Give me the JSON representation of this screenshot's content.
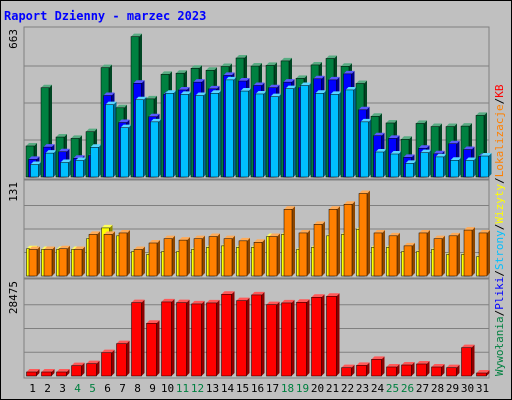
{
  "chart_data": {
    "type": "bar",
    "title": "Raport Dzienny -  marzec 2023",
    "categories": [
      "1",
      "2",
      "3",
      "4",
      "5",
      "6",
      "7",
      "8",
      "9",
      "10",
      "11",
      "12",
      "13",
      "14",
      "15",
      "16",
      "17",
      "18",
      "19",
      "20",
      "21",
      "22",
      "23",
      "24",
      "25",
      "26",
      "27",
      "28",
      "29",
      "30",
      "31"
    ],
    "weekend_days": [
      "4",
      "5",
      "11",
      "12",
      "18",
      "19",
      "25",
      "26"
    ],
    "right_legend": {
      "parts": [
        "Wywołania",
        "/",
        "Pliki",
        "/",
        "Strony",
        "/",
        "Wizyty",
        "/",
        "Lokalizacje",
        "/",
        "KB"
      ],
      "colors": [
        "#008040",
        "#000000",
        "#0000ff",
        "#000000",
        "#00c0ff",
        "#000000",
        "#ffff00",
        "#000000",
        "#ff8000",
        "#000000",
        "#ff0000"
      ]
    },
    "panels": [
      {
        "max_label": "663",
        "ymax": 663,
        "series": [
          {
            "name": "Wywołania",
            "color": "#008040",
            "values": [
              139,
              400,
              179,
              173,
              203,
              490,
              310,
              629,
              350,
              460,
              465,
              487,
              478,
              495,
              533,
              497,
              500,
              520,
              442,
              502,
              531,
              496,
              419,
              272,
              242,
              169,
              240,
              226,
              226,
              228,
              276
            ]
          },
          {
            "name": "Pliki",
            "color": "#0000ff",
            "values": [
              79,
              134,
              113,
              84,
              96,
              365,
              244,
              420,
              270,
              370,
              390,
              425,
              395,
              455,
              430,
              410,
              400,
              425,
              400,
              440,
              435,
              462,
              301,
              185,
              173,
              88,
              129,
              104,
              149,
              123,
              92
            ]
          },
          {
            "name": "Strony",
            "color": "#00c0ff",
            "values": [
              56,
              107,
              65,
              74,
              133,
              324,
              221,
              346,
              247,
              375,
              370,
              365,
              375,
              435,
              385,
              372,
              360,
              396,
              410,
              375,
              370,
              390,
              247,
              112,
              103,
              61,
              109,
              90,
              75,
              74,
              94
            ]
          }
        ]
      },
      {
        "max_label": "131",
        "ymax": 131,
        "series": [
          {
            "name": "Wizyty",
            "color": "#ffff00",
            "values": [
              38,
              37,
              37,
              37,
              52,
              67,
              56,
              34,
              30,
              34,
              34,
              37,
              40,
              42,
              40,
              40,
              55,
              58,
              37,
              40,
              56,
              58,
              65,
              40,
              40,
              34,
              34,
              37,
              30,
              30,
              27
            ]
          },
          {
            "name": "Lokalizacje",
            "color": "#ff8000",
            "values": [
              37,
              37,
              38,
              37,
              58,
              58,
              60,
              37,
              46,
              52,
              50,
              52,
              55,
              52,
              49,
              47,
              55,
              93,
              60,
              72,
              93,
              100,
              115,
              60,
              56,
              42,
              60,
              52,
              56,
              64,
              60
            ]
          }
        ]
      },
      {
        "max_label": "28475",
        "ymax": 28475,
        "series": [
          {
            "name": "KB",
            "color": "#ff0000",
            "values": [
              1200,
              1200,
              1200,
              3100,
              3700,
              7000,
              9700,
              22000,
              15800,
              22200,
              22000,
              21600,
              21900,
              24500,
              22600,
              24300,
              21400,
              21900,
              22100,
              23600,
              23900,
              2500,
              3200,
              5000,
              2700,
              3300,
              3600,
              2700,
              2500,
              8500,
              900
            ]
          }
        ]
      }
    ]
  }
}
